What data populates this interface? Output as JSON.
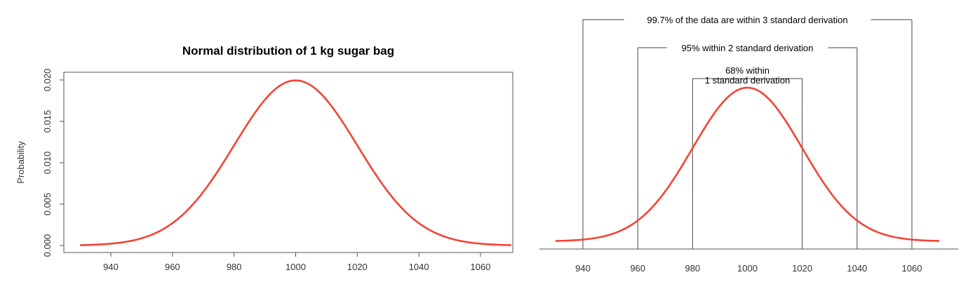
{
  "colors": {
    "curve": "#f44336",
    "axis": "#555555",
    "text": "#333333"
  },
  "chart_data": [
    {
      "type": "line",
      "title": "Normal distribution of 1 kg sugar bag",
      "xlabel": "",
      "ylabel": "Probability",
      "distribution": {
        "family": "normal",
        "mean": 1000,
        "sd": 20
      },
      "xlim": [
        930,
        1070
      ],
      "ylim": [
        0,
        0.0205
      ],
      "x_ticks": [
        940,
        960,
        980,
        1000,
        1020,
        1040,
        1060
      ],
      "x_tick_labels": [
        "940",
        "960",
        "980",
        "1000",
        "1020",
        "1040",
        "1060"
      ],
      "y_ticks": [
        0,
        0.005,
        0.01,
        0.015,
        0.02
      ],
      "y_tick_labels": [
        "0.000",
        "0.005",
        "0.010",
        "0.015",
        "0.020"
      ],
      "box": true,
      "grid": false,
      "series": [
        {
          "x": [
            930,
            940,
            950,
            960,
            970,
            980,
            990,
            1000,
            1010,
            1020,
            1030,
            1040,
            1050,
            1060,
            1070
          ],
          "y": [
            4e-05,
            0.00022,
            0.00088,
            0.0027,
            0.00648,
            0.0121,
            0.0176,
            0.01995,
            0.0176,
            0.0121,
            0.00648,
            0.0027,
            0.00088,
            0.00022,
            4e-05
          ]
        }
      ]
    },
    {
      "type": "line",
      "title": "",
      "xlabel": "",
      "ylabel": "",
      "distribution": {
        "family": "normal",
        "mean": 1000,
        "sd": 20
      },
      "xlim": [
        930,
        1070
      ],
      "ylim": [
        0,
        0.0205
      ],
      "x_ticks": [
        940,
        960,
        980,
        1000,
        1020,
        1040,
        1060
      ],
      "x_tick_labels": [
        "940",
        "960",
        "980",
        "1000",
        "1020",
        "1040",
        "1060"
      ],
      "box": false,
      "grid": false,
      "series": [
        {
          "x": [
            930,
            940,
            950,
            960,
            970,
            980,
            990,
            1000,
            1010,
            1020,
            1030,
            1040,
            1050,
            1060,
            1070
          ],
          "y": [
            4e-05,
            0.00022,
            0.00088,
            0.0027,
            0.00648,
            0.0121,
            0.0176,
            0.01995,
            0.0176,
            0.0121,
            0.00648,
            0.0027,
            0.00088,
            0.00022,
            4e-05
          ]
        }
      ],
      "annotations": [
        {
          "from": 980,
          "to": 1020,
          "lines": [
            "68% within",
            "1 standard derivation"
          ]
        },
        {
          "from": 960,
          "to": 1040,
          "lines": [
            "95% within 2 standard derivation"
          ]
        },
        {
          "from": 940,
          "to": 1060,
          "lines": [
            "99.7% of the data are within 3 standard derivation"
          ]
        }
      ]
    }
  ]
}
